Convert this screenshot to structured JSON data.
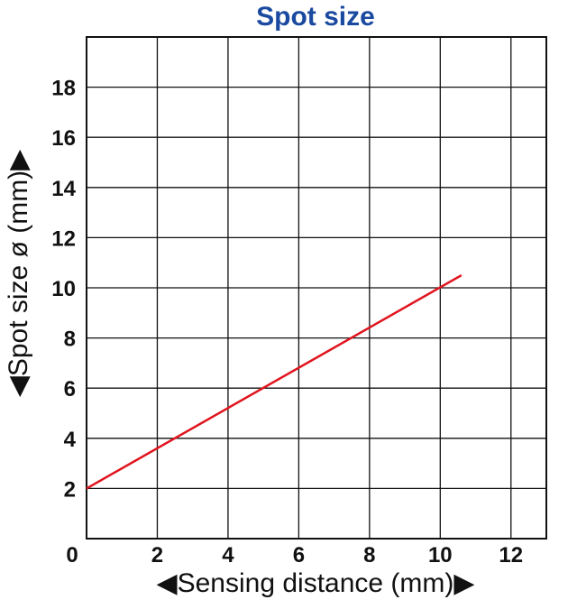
{
  "chart_data": {
    "type": "line",
    "title": "Spot size",
    "xlabel": "◀Sensing distance (mm)▶",
    "ylabel": "◀Spot size ø (mm)▶",
    "xlim": [
      0,
      13
    ],
    "ylim": [
      0,
      20
    ],
    "x_ticks": [
      0,
      2,
      4,
      6,
      8,
      10,
      12
    ],
    "y_ticks": [
      2,
      4,
      6,
      8,
      10,
      12,
      14,
      16,
      18
    ],
    "x_tick_labels": [
      "0",
      "2",
      "4",
      "6",
      "8",
      "10",
      "12"
    ],
    "y_tick_labels": [
      "2",
      "4",
      "6",
      "8",
      "10",
      "12",
      "14",
      "16",
      "18"
    ],
    "grid": true,
    "series": [
      {
        "x": [
          0,
          10.6
        ],
        "y": [
          2,
          10.5
        ],
        "color": "#e0141e"
      }
    ]
  }
}
